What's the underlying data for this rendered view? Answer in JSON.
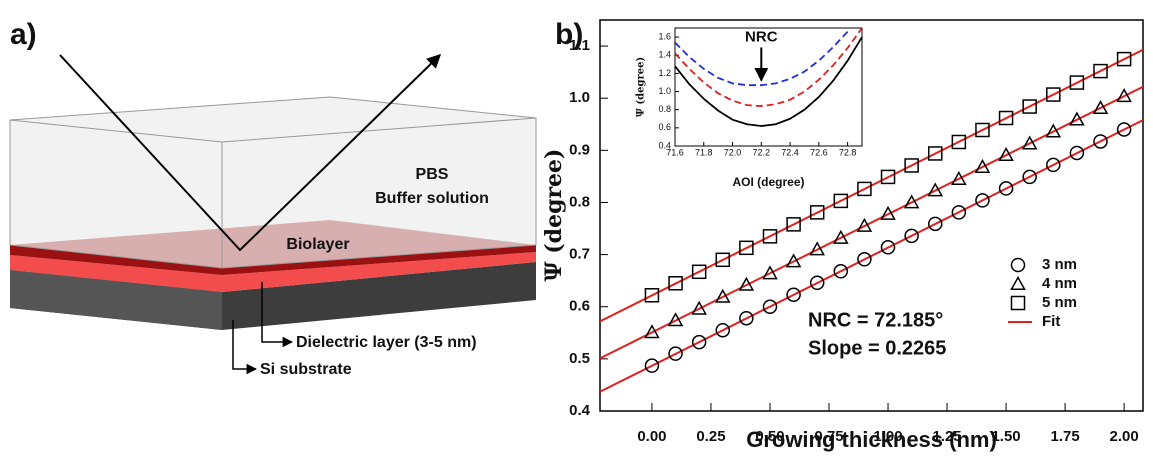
{
  "diagram": {
    "label": "a)",
    "pbs": "PBS",
    "buffer": "Buffer solution",
    "biolayer": "Biolayer",
    "dielectric": "Dielectric layer (3-5 nm)",
    "substrate": "Si substrate"
  },
  "chart_data": [
    {
      "type": "scatter",
      "panel_label": "b)",
      "x_label": "Growing thickness (nm)",
      "y_label": "Ψ (degree)",
      "annotations": [
        "NRC = 72.185°",
        "Slope = 0.2265"
      ],
      "xlim": [
        -0.22,
        2.08
      ],
      "ylim": [
        0.4,
        1.15
      ],
      "xticks": [
        {
          "value": 0,
          "label": "0.00"
        },
        {
          "value": 0.25,
          "label": "0.25"
        },
        {
          "value": 0.5,
          "label": "0.50"
        },
        {
          "value": 0.75,
          "label": "0.75"
        },
        {
          "value": 1,
          "label": "1.00"
        },
        {
          "value": 1.25,
          "label": "1.25"
        },
        {
          "value": 1.5,
          "label": "1.50"
        },
        {
          "value": 1.75,
          "label": "1.75"
        },
        {
          "value": 2,
          "label": "2.00"
        }
      ],
      "yticks": [
        0.4,
        0.5,
        0.6,
        0.7,
        0.8,
        0.9,
        {
          "value": 1,
          "label": "1.0"
        },
        1.1
      ],
      "legend": "right",
      "x": [
        0,
        0.1,
        0.2,
        0.3,
        0.4,
        0.5,
        0.6,
        0.7,
        0.8,
        0.9,
        1,
        1.1,
        1.2,
        1.3,
        1.4,
        1.5,
        1.6,
        1.7,
        1.8,
        1.9,
        2
      ],
      "series": [
        {
          "name": "3 nm",
          "marker": "circle",
          "color": "#000000",
          "values": [
            0.487,
            0.51,
            0.532,
            0.555,
            0.578,
            0.6,
            0.623,
            0.646,
            0.668,
            0.691,
            0.714,
            0.736,
            0.759,
            0.781,
            0.804,
            0.827,
            0.849,
            0.872,
            0.895,
            0.917,
            0.94
          ]
        },
        {
          "name": "4 nm",
          "marker": "triangle",
          "color": "#000000",
          "values": [
            0.551,
            0.574,
            0.596,
            0.619,
            0.642,
            0.664,
            0.687,
            0.71,
            0.732,
            0.755,
            0.778,
            0.8,
            0.823,
            0.845,
            0.868,
            0.891,
            0.913,
            0.936,
            0.959,
            0.981,
            1.004
          ]
        },
        {
          "name": "5 nm",
          "marker": "square",
          "color": "#000000",
          "values": [
            0.622,
            0.645,
            0.667,
            0.69,
            0.713,
            0.735,
            0.758,
            0.781,
            0.803,
            0.826,
            0.849,
            0.871,
            0.894,
            0.916,
            0.939,
            0.962,
            0.984,
            1.007,
            1.03,
            1.052,
            1.075
          ]
        }
      ],
      "fit": {
        "name": "Fit",
        "color": "#e0201e",
        "x": [
          -0.22,
          2.08
        ],
        "lines": [
          [
            0.437,
            0.958
          ],
          [
            0.501,
            1.022
          ],
          [
            0.572,
            1.093
          ]
        ]
      }
    },
    {
      "type": "line",
      "x_label": "AOI (degree)",
      "y_label": "Ψ (degree)",
      "annotations": [
        "NRC"
      ],
      "annotation_x": 72.2,
      "annotation_y": 1.1,
      "xlim": [
        71.6,
        72.9
      ],
      "ylim": [
        0.4,
        1.7
      ],
      "xticks": [
        71.6,
        71.8,
        {
          "value": 72,
          "label": "72.0"
        },
        72.2,
        72.4,
        72.6,
        72.8
      ],
      "yticks": [
        0.4,
        0.6,
        0.8,
        {
          "value": 1,
          "label": "1.0"
        },
        1.2,
        1.4,
        1.6
      ],
      "x": [
        71.6,
        71.7,
        71.8,
        71.9,
        72,
        72.1,
        72.2,
        72.3,
        72.4,
        72.5,
        72.6,
        72.7,
        72.8,
        72.9
      ],
      "series": [
        {
          "color": "#000000",
          "dashed": false,
          "values": [
            1.28,
            1.08,
            0.92,
            0.79,
            0.69,
            0.64,
            0.62,
            0.64,
            0.7,
            0.8,
            0.94,
            1.12,
            1.34,
            1.6
          ]
        },
        {
          "color": "#e0201e",
          "dashed": true,
          "values": [
            1.42,
            1.25,
            1.1,
            0.98,
            0.9,
            0.85,
            0.84,
            0.86,
            0.91,
            1.0,
            1.13,
            1.29,
            1.48,
            1.7
          ]
        },
        {
          "color": "#2030d0",
          "dashed": true,
          "values": [
            1.54,
            1.38,
            1.25,
            1.15,
            1.09,
            1.07,
            1.07,
            1.09,
            1.14,
            1.22,
            1.34,
            1.49,
            1.66,
            null
          ]
        }
      ]
    }
  ]
}
